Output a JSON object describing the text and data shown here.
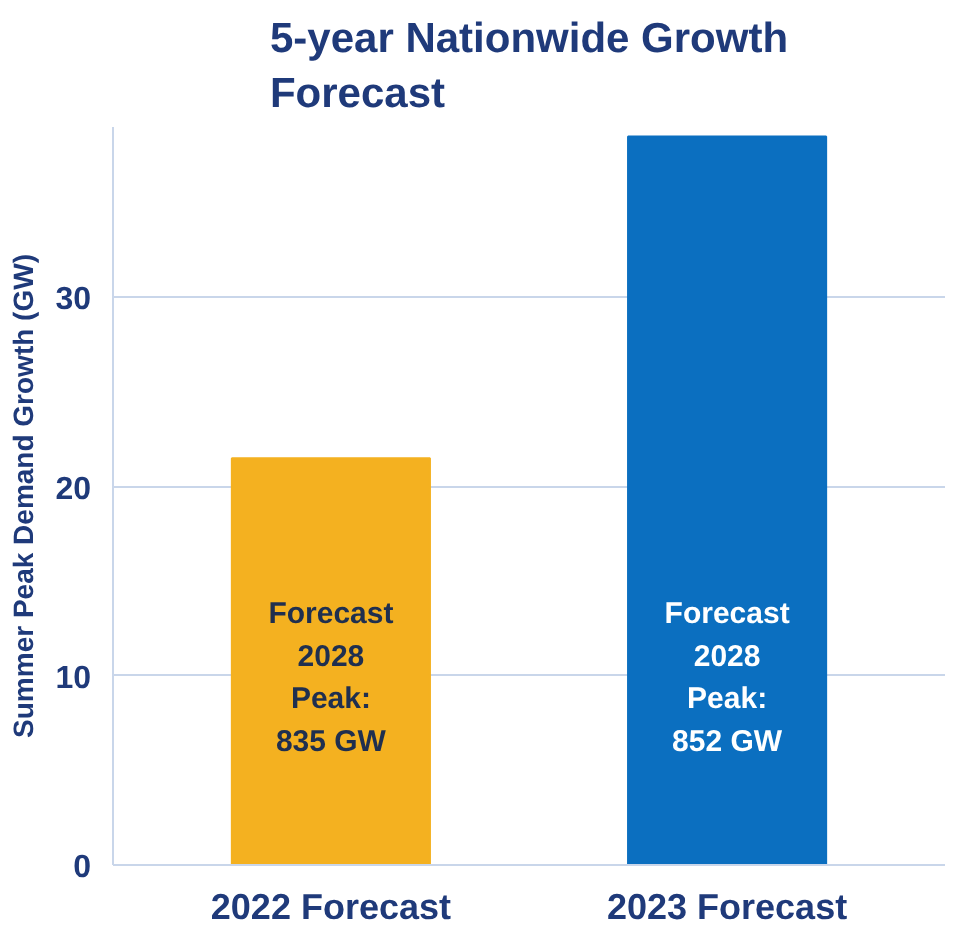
{
  "chart_data": {
    "type": "bar",
    "title": "5-year Nationwide Growth\nForecast",
    "ylabel": "Summer Peak Demand Growth (GW)",
    "categories": [
      "2022 Forecast",
      "2023 Forecast"
    ],
    "values": [
      21.5,
      38.5
    ],
    "colors": [
      "#f4b120",
      "#0b6fc0"
    ],
    "ylim": [
      0,
      39
    ],
    "yticks": [
      0,
      10,
      20,
      30
    ],
    "grid": "y",
    "annotations": [
      "Forecast\n2028\nPeak:\n835 GW",
      "Forecast\n2028\nPeak:\n852 GW"
    ]
  }
}
